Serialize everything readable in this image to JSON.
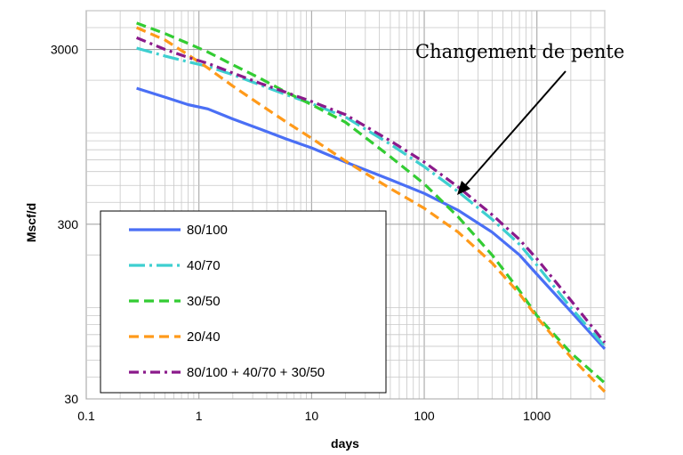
{
  "chart_data": {
    "type": "line",
    "x_scale": "log",
    "y_scale": "log",
    "xlabel": "days",
    "ylabel": "Mscf/d",
    "xlim": [
      0.1,
      4000
    ],
    "ylim": [
      30,
      5000
    ],
    "x_ticks": [
      "0.1",
      "1",
      "10",
      "100",
      "1000"
    ],
    "y_ticks": [
      "30",
      "300",
      "3000"
    ],
    "grid": true,
    "legend_position": "bottom-left",
    "annotation": {
      "text": "Changement de pente",
      "points_to": {
        "x": 200,
        "y": 350
      }
    },
    "series": [
      {
        "name": "80/100",
        "color": "#4a6ff5",
        "style": "solid",
        "x": [
          0.28,
          0.5,
          0.8,
          1.2,
          2,
          3.5,
          6,
          10,
          20,
          50,
          100,
          200,
          400,
          700,
          1000,
          2000,
          4000
        ],
        "y": [
          1800,
          1600,
          1450,
          1370,
          1200,
          1050,
          920,
          820,
          680,
          540,
          450,
          360,
          270,
          200,
          155,
          95,
          58
        ]
      },
      {
        "name": "40/70",
        "color": "#3ecfd0",
        "style": "longdash-dot",
        "x": [
          0.28,
          0.5,
          0.8,
          1.2,
          2,
          3.5,
          6,
          10,
          20,
          50,
          100,
          200,
          400,
          700,
          1000,
          2000,
          4000
        ],
        "y": [
          3050,
          2750,
          2550,
          2400,
          2150,
          1880,
          1650,
          1470,
          1230,
          860,
          640,
          460,
          320,
          230,
          175,
          100,
          60
        ]
      },
      {
        "name": "30/50",
        "color": "#33cc33",
        "style": "dash",
        "x": [
          0.28,
          0.5,
          0.8,
          1.2,
          2,
          3.5,
          6,
          10,
          20,
          50,
          100,
          200,
          400,
          700,
          1000,
          2000,
          4000
        ],
        "y": [
          4250,
          3700,
          3250,
          2900,
          2450,
          2050,
          1700,
          1450,
          1150,
          730,
          510,
          330,
          200,
          125,
          90,
          55,
          37
        ]
      },
      {
        "name": "20/40",
        "color": "#ff9a1a",
        "style": "dash",
        "x": [
          0.28,
          0.5,
          0.8,
          1.2,
          2,
          3.5,
          6,
          10,
          20,
          50,
          100,
          200,
          400,
          700,
          1000,
          2000,
          4000
        ],
        "y": [
          4000,
          3400,
          2800,
          2350,
          1850,
          1450,
          1150,
          930,
          690,
          480,
          370,
          270,
          180,
          120,
          88,
          52,
          33
        ]
      },
      {
        "name": "80/100 + 40/70 + 30/50",
        "color": "#8b1a8b",
        "style": "dash-dot",
        "x": [
          0.28,
          0.5,
          0.8,
          1.2,
          2,
          3.5,
          6,
          10,
          20,
          50,
          100,
          200,
          400,
          700,
          1000,
          2000,
          4000
        ],
        "y": [
          3500,
          3000,
          2700,
          2500,
          2200,
          1920,
          1700,
          1510,
          1270,
          900,
          680,
          490,
          340,
          245,
          190,
          110,
          63
        ]
      }
    ]
  }
}
